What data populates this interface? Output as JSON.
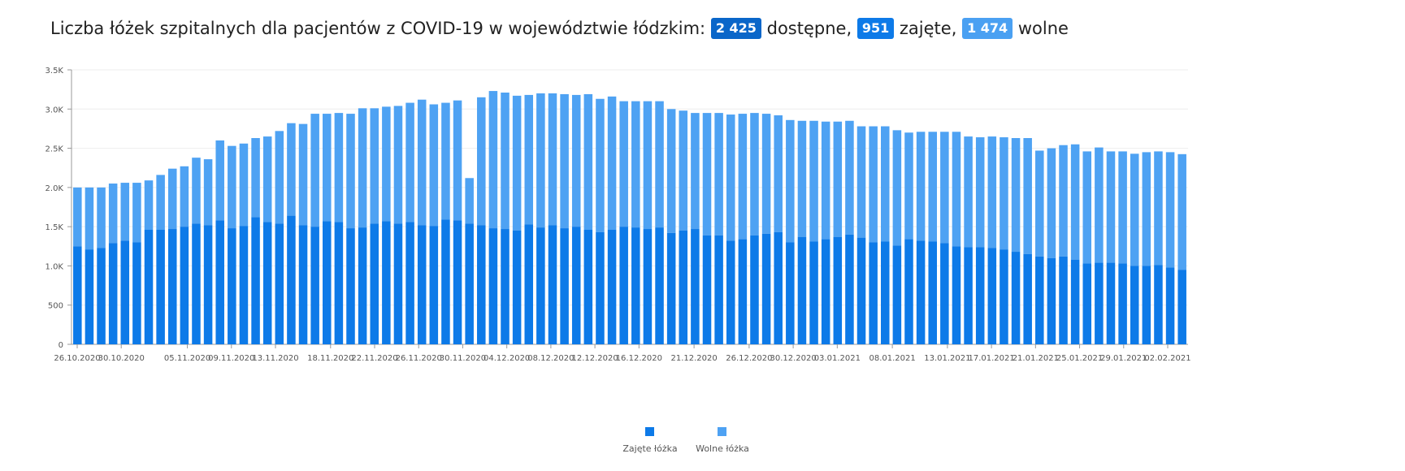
{
  "header": {
    "title_prefix": "Liczba łóżek szpitalnych dla pacjentów z COVID-19 w województwie łódzkim:",
    "available_value": "2 425",
    "available_label": "dostępne,",
    "occupied_value": "951",
    "occupied_label": "zajęte,",
    "free_value": "1 474",
    "free_label": "wolne"
  },
  "colors": {
    "occupied": "#0d7ae8",
    "free": "#4ea2f3",
    "badge_available": "#0a66c9",
    "badge_occupied": "#0d7ae8",
    "badge_free": "#4aa0f2"
  },
  "chart_data": {
    "type": "bar",
    "stacked": true,
    "title": "",
    "xlabel": "",
    "ylabel": "",
    "ylim": [
      0,
      3500
    ],
    "y_ticks": [
      "0",
      "500",
      "1.0K",
      "1.5K",
      "2.0K",
      "2.5K",
      "3.0K",
      "3.5K"
    ],
    "x_ticks": [
      "26.10.2020",
      "30.10.2020",
      "05.11.2020",
      "09.11.2020",
      "13.11.2020",
      "18.11.2020",
      "22.11.2020",
      "26.11.2020",
      "30.11.2020",
      "04.12.2020",
      "08.12.2020",
      "12.12.2020",
      "16.12.2020",
      "21.12.2020",
      "26.12.2020",
      "30.12.2020",
      "03.01.2021",
      "08.01.2021",
      "13.01.2021",
      "17.01.2021",
      "21.01.2021",
      "25.01.2021",
      "29.01.2021",
      "02.02.2021"
    ],
    "grid": "horizontal",
    "legend_position": "bottom-center",
    "series": [
      {
        "name": "Zajęte łóżka",
        "values": [
          1250,
          1210,
          1230,
          1290,
          1320,
          1300,
          1460,
          1460,
          1470,
          1500,
          1540,
          1520,
          1580,
          1480,
          1510,
          1620,
          1560,
          1540,
          1640,
          1520,
          1500,
          1570,
          1560,
          1480,
          1490,
          1540,
          1570,
          1540,
          1560,
          1520,
          1510,
          1590,
          1580,
          1540,
          1520,
          1480,
          1470,
          1450,
          1530,
          1490,
          1520,
          1480,
          1500,
          1460,
          1430,
          1460,
          1500,
          1490,
          1470,
          1490,
          1420,
          1450,
          1470,
          1390,
          1390,
          1320,
          1340,
          1390,
          1410,
          1430,
          1300,
          1370,
          1310,
          1340,
          1370,
          1400,
          1360,
          1300,
          1310,
          1260,
          1340,
          1320,
          1310,
          1290,
          1250,
          1240,
          1240,
          1230,
          1210,
          1180,
          1150,
          1120,
          1100,
          1120,
          1080,
          1030,
          1040,
          1040,
          1030,
          1000,
          1000,
          1010,
          980,
          951
        ]
      },
      {
        "name": "Wolne łóżka",
        "values": [
          750,
          790,
          770,
          760,
          740,
          760,
          630,
          700,
          770,
          770,
          840,
          840,
          1020,
          1050,
          1050,
          1010,
          1090,
          1180,
          1180,
          1290,
          1440,
          1370,
          1390,
          1460,
          1520,
          1470,
          1460,
          1500,
          1520,
          1600,
          1550,
          1490,
          1530,
          580,
          1630,
          1750,
          1740,
          1720,
          1650,
          1710,
          1680,
          1710,
          1680,
          1730,
          1700,
          1700,
          1600,
          1610,
          1630,
          1610,
          1580,
          1530,
          1480,
          1560,
          1560,
          1610,
          1600,
          1560,
          1530,
          1490,
          1560,
          1480,
          1540,
          1500,
          1470,
          1450,
          1420,
          1480,
          1470,
          1470,
          1360,
          1390,
          1400,
          1420,
          1460,
          1410,
          1400,
          1420,
          1430,
          1450,
          1480,
          1350,
          1400,
          1420,
          1470,
          1430,
          1470,
          1420,
          1430,
          1430,
          1450,
          1450,
          1470,
          1474
        ]
      }
    ]
  }
}
